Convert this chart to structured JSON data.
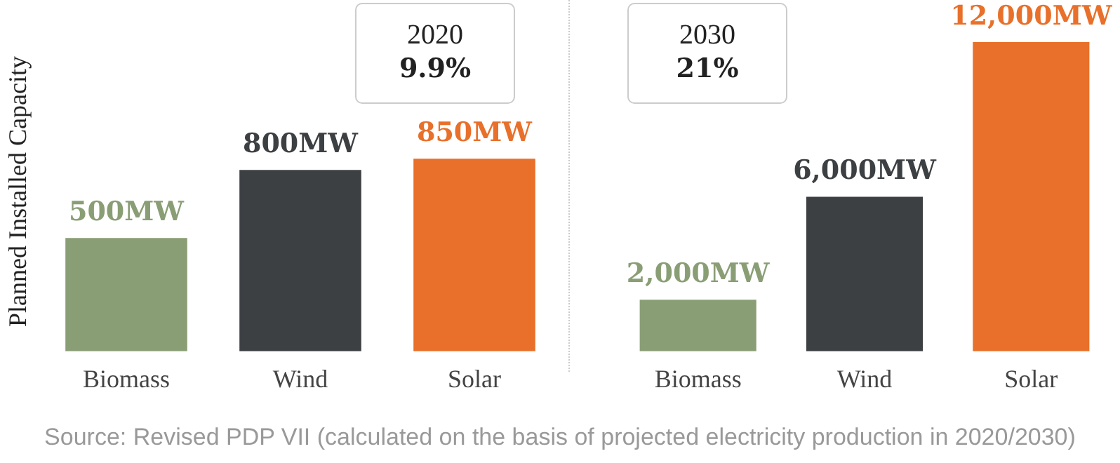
{
  "chart_data": [
    {
      "type": "bar",
      "title": "2020",
      "subtitle": "9.9%",
      "ylabel": "Planned Installed Capacity",
      "categories": [
        "Biomass",
        "Wind",
        "Solar"
      ],
      "values": [
        500,
        800,
        850
      ],
      "colors": [
        "#8a9e75",
        "#3d4043",
        "#e8702a"
      ],
      "value_labels": [
        "500MW",
        "800MW",
        "850MW"
      ],
      "annotations": [
        "Source: Revised PDP VII (calculated on the basis of projected electricity production in 2020/2030)"
      ],
      "legend": false,
      "grid": false
    },
    {
      "type": "bar",
      "title": "2030",
      "subtitle": "21%",
      "categories": [
        "Biomass",
        "Wind",
        "Solar"
      ],
      "values": [
        2000,
        6000,
        12000
      ],
      "colors": [
        "#8a9e75",
        "#3d4043",
        "#e8702a"
      ],
      "value_labels": [
        "2,000MW",
        "6,000MW",
        "12,000MW"
      ],
      "legend": false,
      "grid": false
    }
  ]
}
